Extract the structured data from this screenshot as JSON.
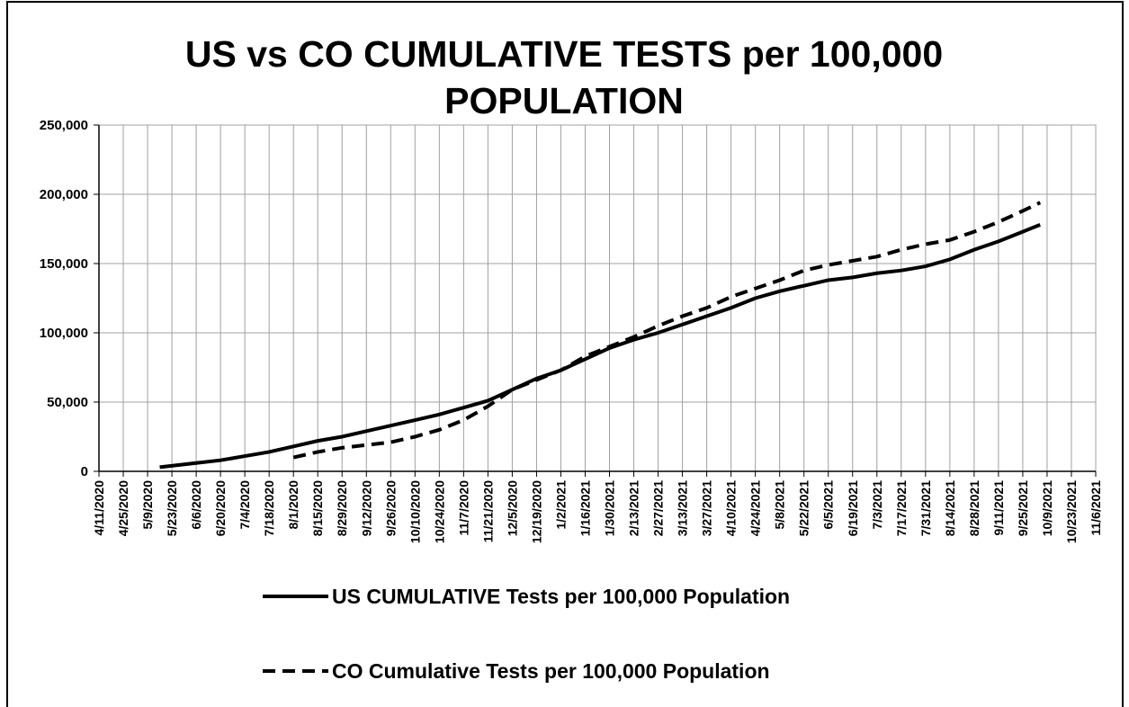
{
  "chart_data": {
    "type": "line",
    "title": "US vs CO CUMULATIVE TESTS per 100,000 POPULATION",
    "x": [
      "5/16/2020",
      "6/6/2020",
      "6/20/2020",
      "7/4/2020",
      "7/18/2020",
      "8/1/2020",
      "8/15/2020",
      "8/29/2020",
      "9/12/2020",
      "9/26/2020",
      "10/10/2020",
      "10/24/2020",
      "11/7/2020",
      "11/21/2020",
      "12/5/2020",
      "12/19/2020",
      "1/2/2021",
      "1/16/2021",
      "1/30/2021",
      "2/13/2021",
      "2/27/2021",
      "3/13/2021",
      "3/27/2021",
      "4/10/2021",
      "4/24/2021",
      "5/8/2021",
      "5/22/2021",
      "6/5/2021",
      "6/19/2021",
      "7/3/2021",
      "7/17/2021",
      "7/31/2021",
      "8/14/2021",
      "8/28/2021",
      "9/11/2021",
      "9/25/2021",
      "10/5/2021"
    ],
    "series": [
      {
        "name": "US CUMULATIVE Tests per 100,000 Population",
        "color": "#000000",
        "dash": false,
        "values": [
          3000,
          6000,
          8000,
          11000,
          14000,
          18000,
          22000,
          25000,
          29000,
          33000,
          37000,
          41000,
          46000,
          51000,
          59000,
          67000,
          73000,
          81000,
          89000,
          95000,
          100000,
          106000,
          112000,
          118000,
          125000,
          130000,
          134000,
          138000,
          140000,
          143000,
          145000,
          148000,
          153000,
          160000,
          166000,
          173000,
          178000
        ]
      },
      {
        "name": "CO Cumulative Tests per 100,000 Population",
        "color": "#000000",
        "dash": true,
        "values": [
          null,
          null,
          null,
          null,
          null,
          10000,
          14000,
          17000,
          19000,
          21000,
          25000,
          30000,
          37000,
          47000,
          59000,
          66000,
          73000,
          83000,
          90000,
          97000,
          105000,
          112000,
          118000,
          126000,
          132000,
          138000,
          145000,
          149000,
          152000,
          155000,
          160000,
          164000,
          167000,
          173000,
          180000,
          188000,
          194000
        ]
      }
    ],
    "xlim": [
      "4/11/2020",
      "11/6/2021"
    ],
    "xticks": [
      "4/11/2020",
      "4/25/2020",
      "5/9/2020",
      "5/23/2020",
      "6/6/2020",
      "6/20/2020",
      "7/4/2020",
      "7/18/2020",
      "8/1/2020",
      "8/15/2020",
      "8/29/2020",
      "9/12/2020",
      "9/26/2020",
      "10/10/2020",
      "10/24/2020",
      "11/7/2020",
      "11/21/2020",
      "12/5/2020",
      "12/19/2020",
      "1/2/2021",
      "1/16/2021",
      "1/30/2021",
      "2/13/2021",
      "2/27/2021",
      "3/13/2021",
      "3/27/2021",
      "4/10/2021",
      "4/24/2021",
      "5/8/2021",
      "5/22/2021",
      "6/5/2021",
      "6/19/2021",
      "7/3/2021",
      "7/17/2021",
      "7/31/2021",
      "8/14/2021",
      "8/28/2021",
      "9/11/2021",
      "9/25/2021",
      "10/9/2021",
      "10/23/2021",
      "11/6/2021"
    ],
    "ylim": [
      0,
      250000
    ],
    "yticks": [
      0,
      {
        "value": 50000,
        "label": "50,000"
      },
      {
        "value": 100000,
        "label": "100,000"
      },
      {
        "value": 150000,
        "label": "150,000"
      },
      {
        "value": 200000,
        "label": "200,000"
      },
      {
        "value": 250000,
        "label": "250,000"
      }
    ],
    "grid": true
  }
}
